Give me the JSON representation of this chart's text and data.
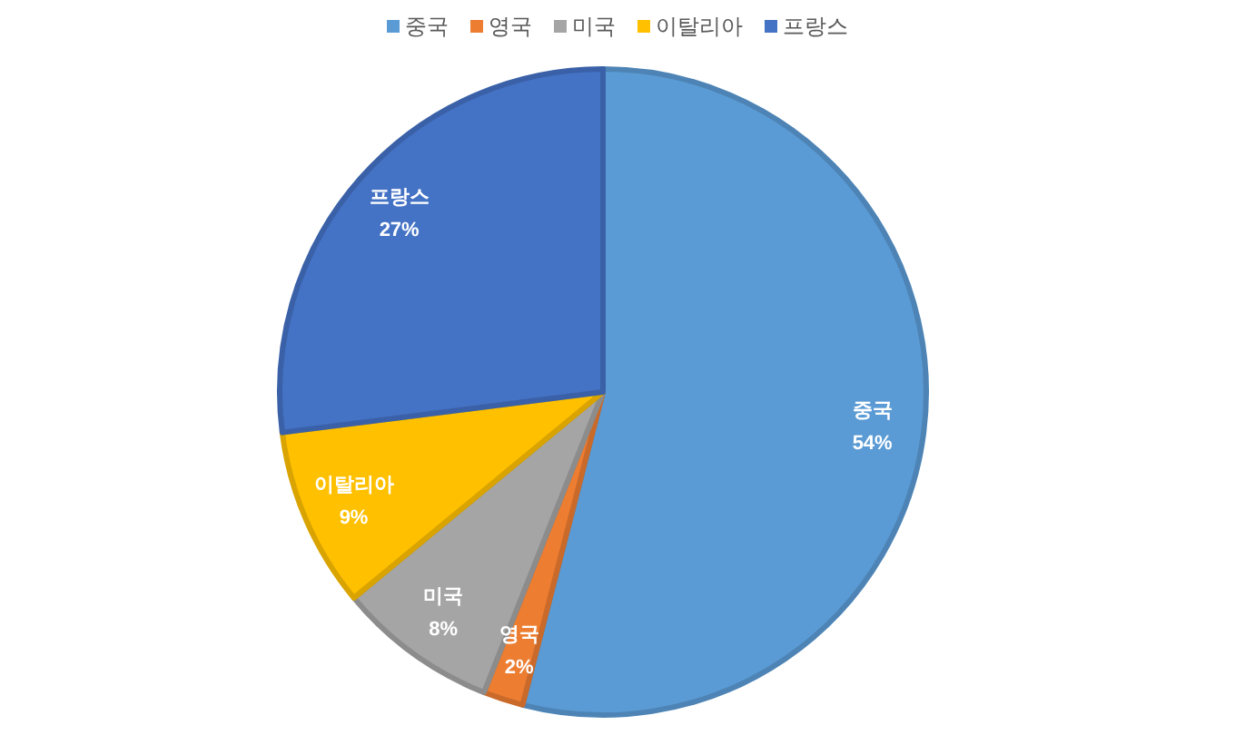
{
  "chart_data": {
    "type": "pie",
    "categories": [
      "중국",
      "영국",
      "미국",
      "이탈리아",
      "프랑스"
    ],
    "values": [
      54,
      2,
      8,
      9,
      27
    ],
    "colors": [
      "#5b9bd5",
      "#ed7d31",
      "#a5a5a5",
      "#ffc000",
      "#4472c4"
    ],
    "value_labels": [
      "54%",
      "2%",
      "8%",
      "9%",
      "27%"
    ],
    "legend": "top"
  }
}
